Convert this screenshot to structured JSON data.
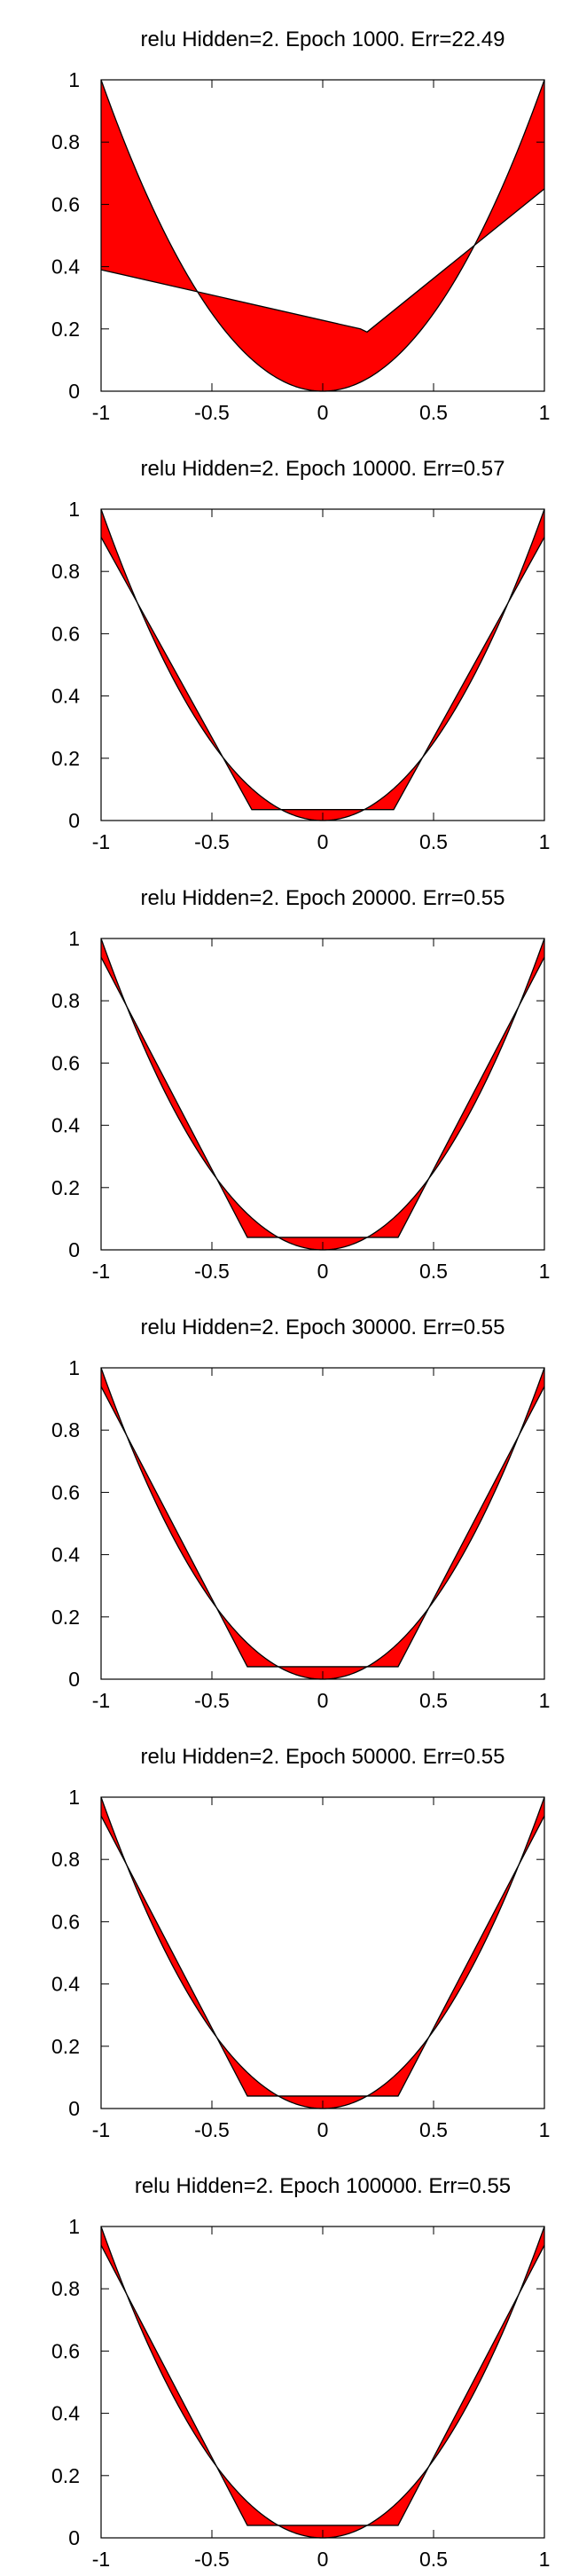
{
  "colors": {
    "fill": "#ff0000",
    "line": "#000000",
    "background": "#ffffff"
  },
  "chart_data": [
    {
      "type": "area",
      "title": "relu Hidden=2. Epoch 1000. Err=22.49",
      "xlabel": "",
      "ylabel": "",
      "xlim": [
        -1,
        1
      ],
      "ylim": [
        0,
        1
      ],
      "grid": false,
      "legend": "none",
      "x_ticks": [
        "-1",
        "-0.5",
        "0",
        "0.5",
        "1"
      ],
      "y_ticks": [
        "0",
        "0.2",
        "0.4",
        "0.6",
        "0.8",
        "1"
      ],
      "series": [
        {
          "role": "target",
          "function": "x^2"
        },
        {
          "role": "prediction",
          "x": [
            -1,
            0.17,
            0.2,
            1
          ],
          "y": [
            0.39,
            0.2,
            0.19,
            0.65
          ]
        }
      ]
    },
    {
      "type": "area",
      "title": "relu Hidden=2. Epoch 10000. Err=0.57",
      "xlabel": "",
      "ylabel": "",
      "xlim": [
        -1,
        1
      ],
      "ylim": [
        0,
        1
      ],
      "grid": false,
      "legend": "none",
      "x_ticks": [
        "-1",
        "-0.5",
        "0",
        "0.5",
        "1"
      ],
      "y_ticks": [
        "0",
        "0.2",
        "0.4",
        "0.6",
        "0.8",
        "1"
      ],
      "series": [
        {
          "role": "target",
          "function": "x^2"
        },
        {
          "role": "prediction",
          "x": [
            -1,
            -0.32,
            0.32,
            1
          ],
          "y": [
            0.91,
            0.035,
            0.035,
            0.91
          ]
        }
      ]
    },
    {
      "type": "area",
      "title": "relu Hidden=2. Epoch 20000. Err=0.55",
      "xlabel": "",
      "ylabel": "",
      "xlim": [
        -1,
        1
      ],
      "ylim": [
        0,
        1
      ],
      "grid": false,
      "legend": "none",
      "x_ticks": [
        "-1",
        "-0.5",
        "0",
        "0.5",
        "1"
      ],
      "y_ticks": [
        "0",
        "0.2",
        "0.4",
        "0.6",
        "0.8",
        "1"
      ],
      "series": [
        {
          "role": "target",
          "function": "x^2"
        },
        {
          "role": "prediction",
          "x": [
            -1,
            -0.34,
            0.34,
            1
          ],
          "y": [
            0.94,
            0.04,
            0.04,
            0.94
          ]
        }
      ]
    },
    {
      "type": "area",
      "title": "relu Hidden=2. Epoch 30000. Err=0.55",
      "xlabel": "",
      "ylabel": "",
      "xlim": [
        -1,
        1
      ],
      "ylim": [
        0,
        1
      ],
      "grid": false,
      "legend": "none",
      "x_ticks": [
        "-1",
        "-0.5",
        "0",
        "0.5",
        "1"
      ],
      "y_ticks": [
        "0",
        "0.2",
        "0.4",
        "0.6",
        "0.8",
        "1"
      ],
      "series": [
        {
          "role": "target",
          "function": "x^2"
        },
        {
          "role": "prediction",
          "x": [
            -1,
            -0.34,
            0.34,
            1
          ],
          "y": [
            0.94,
            0.04,
            0.04,
            0.94
          ]
        }
      ]
    },
    {
      "type": "area",
      "title": "relu Hidden=2. Epoch 50000. Err=0.55",
      "xlabel": "",
      "ylabel": "",
      "xlim": [
        -1,
        1
      ],
      "ylim": [
        0,
        1
      ],
      "grid": false,
      "legend": "none",
      "x_ticks": [
        "-1",
        "-0.5",
        "0",
        "0.5",
        "1"
      ],
      "y_ticks": [
        "0",
        "0.2",
        "0.4",
        "0.6",
        "0.8",
        "1"
      ],
      "series": [
        {
          "role": "target",
          "function": "x^2"
        },
        {
          "role": "prediction",
          "x": [
            -1,
            -0.34,
            0.34,
            1
          ],
          "y": [
            0.94,
            0.04,
            0.04,
            0.94
          ]
        }
      ]
    },
    {
      "type": "area",
      "title": "relu Hidden=2. Epoch 100000. Err=0.55",
      "xlabel": "",
      "ylabel": "",
      "xlim": [
        -1,
        1
      ],
      "ylim": [
        0,
        1
      ],
      "grid": false,
      "legend": "none",
      "x_ticks": [
        "-1",
        "-0.5",
        "0",
        "0.5",
        "1"
      ],
      "y_ticks": [
        "0",
        "0.2",
        "0.4",
        "0.6",
        "0.8",
        "1"
      ],
      "series": [
        {
          "role": "target",
          "function": "x^2"
        },
        {
          "role": "prediction",
          "x": [
            -1,
            -0.34,
            0.34,
            1
          ],
          "y": [
            0.94,
            0.04,
            0.04,
            0.94
          ]
        }
      ]
    }
  ]
}
